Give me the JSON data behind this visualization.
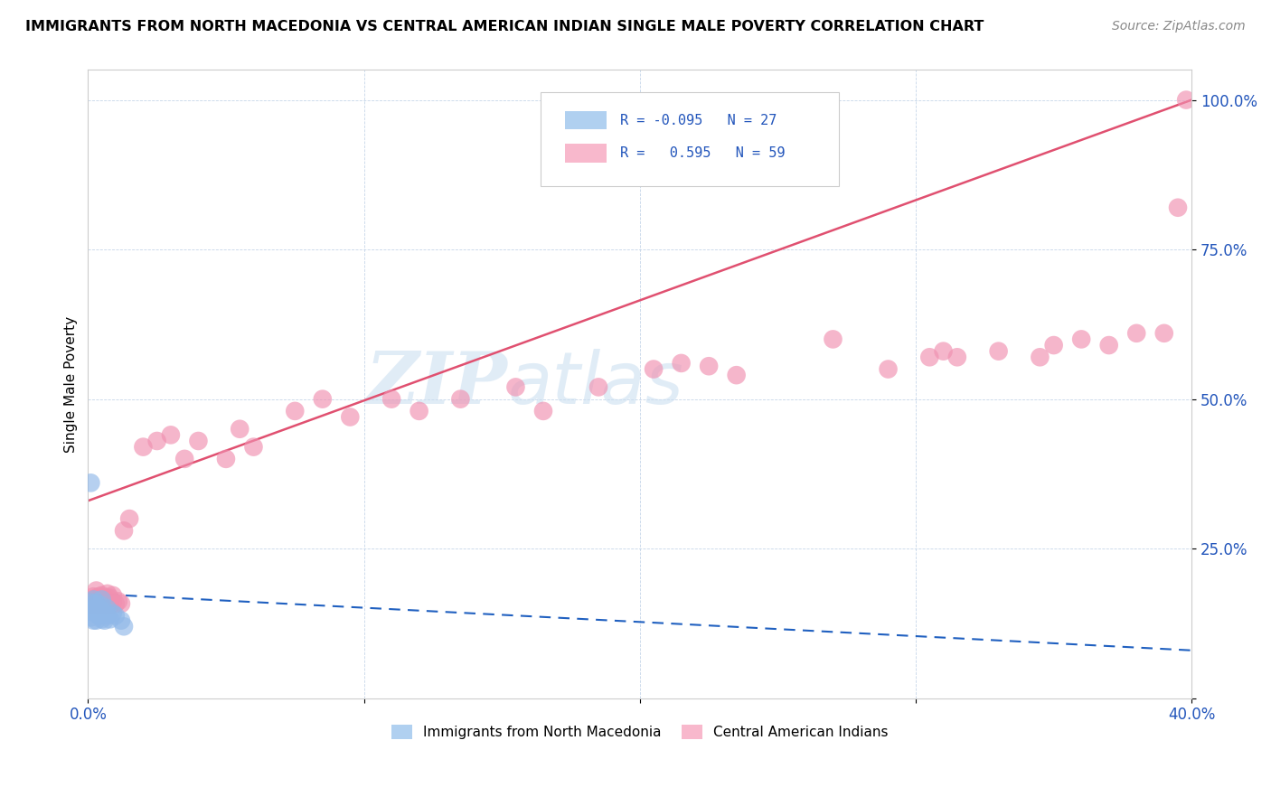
{
  "title": "IMMIGRANTS FROM NORTH MACEDONIA VS CENTRAL AMERICAN INDIAN SINGLE MALE POVERTY CORRELATION CHART",
  "source": "Source: ZipAtlas.com",
  "ylabel": "Single Male Poverty",
  "y_ticks": [
    0.0,
    0.25,
    0.5,
    0.75,
    1.0
  ],
  "y_tick_labels": [
    "",
    "25.0%",
    "50.0%",
    "75.0%",
    "100.0%"
  ],
  "x_ticks": [
    0.0,
    0.1,
    0.2,
    0.3,
    0.4
  ],
  "x_tick_labels": [
    "0.0%",
    "",
    "",
    "",
    "40.0%"
  ],
  "watermark_zip": "ZIP",
  "watermark_atlas": "atlas",
  "legend_label1": "Immigrants from North Macedonia",
  "legend_label2": "Central American Indians",
  "blue_scatter_color": "#90b8e8",
  "pink_scatter_color": "#f090b0",
  "blue_line_color": "#2060c0",
  "pink_line_color": "#e05070",
  "blue_legend_color": "#b0d0f0",
  "pink_legend_color": "#f8b8cc",
  "xlim": [
    0.0,
    0.4
  ],
  "ylim": [
    0.0,
    1.05
  ],
  "pink_line_x0": 0.0,
  "pink_line_y0": 0.33,
  "pink_line_x1": 0.4,
  "pink_line_y1": 1.0,
  "blue_line_x0": 0.0,
  "blue_line_y0": 0.175,
  "blue_line_x1": 0.4,
  "blue_line_y1": 0.08,
  "blue_x": [
    0.001,
    0.001,
    0.001,
    0.002,
    0.002,
    0.002,
    0.002,
    0.003,
    0.003,
    0.003,
    0.003,
    0.004,
    0.004,
    0.005,
    0.005,
    0.005,
    0.005,
    0.006,
    0.006,
    0.007,
    0.007,
    0.008,
    0.009,
    0.01,
    0.012,
    0.013,
    0.001
  ],
  "blue_y": [
    0.135,
    0.145,
    0.16,
    0.13,
    0.148,
    0.156,
    0.165,
    0.13,
    0.142,
    0.15,
    0.16,
    0.138,
    0.15,
    0.132,
    0.143,
    0.155,
    0.165,
    0.13,
    0.145,
    0.138,
    0.15,
    0.132,
    0.142,
    0.138,
    0.13,
    0.12,
    0.36
  ],
  "pink_x": [
    0.001,
    0.002,
    0.002,
    0.003,
    0.003,
    0.003,
    0.004,
    0.004,
    0.005,
    0.005,
    0.006,
    0.006,
    0.007,
    0.007,
    0.007,
    0.008,
    0.008,
    0.009,
    0.009,
    0.01,
    0.011,
    0.012,
    0.013,
    0.015,
    0.02,
    0.025,
    0.03,
    0.035,
    0.04,
    0.05,
    0.055,
    0.06,
    0.075,
    0.085,
    0.095,
    0.11,
    0.12,
    0.135,
    0.155,
    0.165,
    0.185,
    0.205,
    0.215,
    0.225,
    0.235,
    0.27,
    0.29,
    0.305,
    0.31,
    0.315,
    0.33,
    0.345,
    0.35,
    0.36,
    0.37,
    0.38,
    0.39,
    0.395,
    0.398
  ],
  "pink_y": [
    0.155,
    0.16,
    0.17,
    0.155,
    0.168,
    0.18,
    0.155,
    0.17,
    0.158,
    0.172,
    0.155,
    0.168,
    0.155,
    0.168,
    0.175,
    0.155,
    0.168,
    0.16,
    0.172,
    0.158,
    0.162,
    0.158,
    0.28,
    0.3,
    0.42,
    0.43,
    0.44,
    0.4,
    0.43,
    0.4,
    0.45,
    0.42,
    0.48,
    0.5,
    0.47,
    0.5,
    0.48,
    0.5,
    0.52,
    0.48,
    0.52,
    0.55,
    0.56,
    0.555,
    0.54,
    0.6,
    0.55,
    0.57,
    0.58,
    0.57,
    0.58,
    0.57,
    0.59,
    0.6,
    0.59,
    0.61,
    0.61,
    0.82,
    1.0
  ]
}
